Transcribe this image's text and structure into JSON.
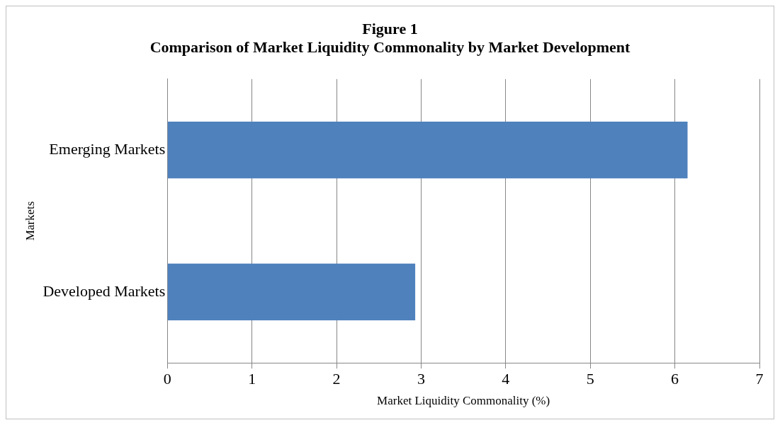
{
  "chart_data": {
    "type": "bar",
    "orientation": "horizontal",
    "title": [
      "Figure 1",
      "Comparison of Market Liquidity Commonality by Market Development"
    ],
    "xlabel": "Market Liquidity Commonality (%)",
    "ylabel": "Markets",
    "categories": [
      "Emerging Markets",
      "Developed Markets"
    ],
    "values": [
      6.15,
      2.93
    ],
    "color": "#4f81bd",
    "xlim": [
      0,
      7
    ],
    "xticks": [
      0,
      1,
      2,
      3,
      4,
      5,
      6,
      7
    ],
    "grid": "x",
    "legend": false
  }
}
